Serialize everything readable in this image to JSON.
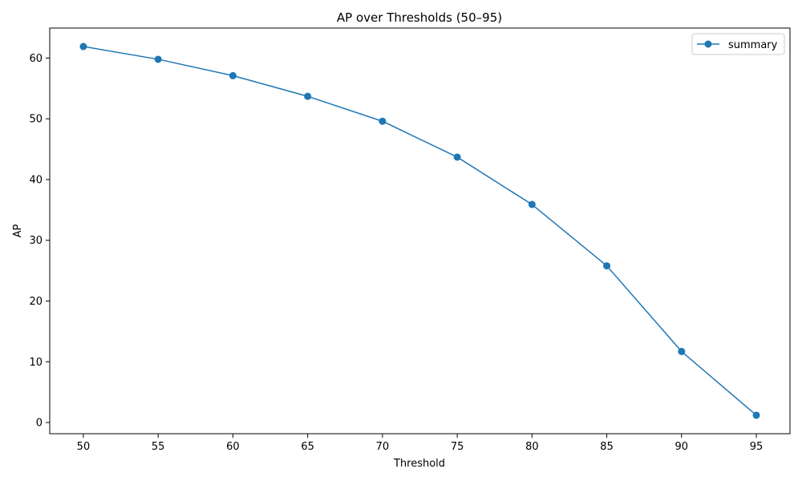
{
  "chart_data": {
    "type": "line",
    "title": "AP over Thresholds (50–95)",
    "xlabel": "Threshold",
    "ylabel": "AP",
    "x": [
      50,
      55,
      60,
      65,
      70,
      75,
      80,
      85,
      90,
      95
    ],
    "series": [
      {
        "name": "summary",
        "color": "#1f77b4",
        "marker": "circle",
        "values": [
          61.9,
          59.8,
          57.1,
          53.7,
          49.6,
          43.7,
          35.9,
          25.8,
          11.7,
          1.2
        ]
      }
    ],
    "xticks": [
      "50",
      "55",
      "60",
      "65",
      "70",
      "75",
      "80",
      "85",
      "90",
      "95"
    ],
    "yticks": [
      "0",
      "10",
      "20",
      "30",
      "40",
      "50",
      "60"
    ],
    "xlim": [
      47.75,
      97.25
    ],
    "ylim": [
      -1.84,
      64.94
    ],
    "grid": false,
    "legend_position": "top-right"
  }
}
